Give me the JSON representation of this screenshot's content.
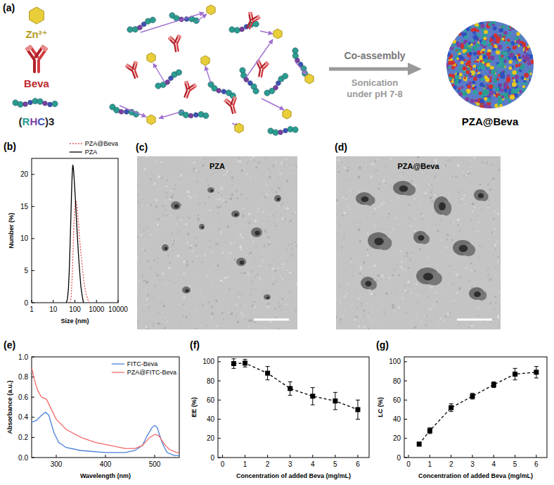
{
  "panels": {
    "a": {
      "label": "(a)",
      "components": {
        "zinc": "Zn²⁺",
        "antibody": "Beva",
        "peptide": "(RHC)3"
      },
      "process": {
        "step": "Co-assembly",
        "conditions": [
          "Sonication",
          "under pH 7-8"
        ]
      },
      "product": "PZA@Beva"
    },
    "c": {
      "label": "(c)",
      "title": "PZA"
    },
    "d": {
      "label": "(d)",
      "title": "PZA@Beva"
    }
  },
  "chart_data": [
    {
      "panel": "(b)",
      "type": "line",
      "x_label": "Size (nm)",
      "y_label": "Number (%)",
      "log": "x",
      "xlim": [
        1,
        10000
      ],
      "xticks": [
        1,
        10,
        100,
        1000,
        10000
      ],
      "ylim": [
        0,
        22.5
      ],
      "yticks": [
        0,
        5,
        10,
        15,
        20
      ],
      "legend": "top",
      "series": [
        {
          "name": "PZA@Beva",
          "color": "#e05050",
          "line_style": "dotted",
          "x": [
            60,
            68,
            75,
            82,
            90,
            100,
            110,
            120,
            130,
            150,
            170,
            200,
            230,
            270,
            320,
            400,
            450
          ],
          "values": [
            0,
            1,
            4,
            8,
            12,
            15,
            16,
            15.5,
            14.5,
            12,
            9.5,
            7,
            5,
            3,
            1.5,
            0.5,
            0
          ]
        },
        {
          "name": "PZA",
          "color": "#000000",
          "line_style": "solid",
          "x": [
            40,
            45,
            50,
            55,
            60,
            65,
            70,
            75,
            80,
            85,
            90,
            100,
            110,
            120,
            135,
            150,
            170,
            190,
            220,
            250
          ],
          "values": [
            0,
            0.5,
            2,
            5,
            9,
            13,
            17,
            20,
            21.5,
            21,
            20,
            17.5,
            15,
            12.5,
            9.5,
            7,
            4.5,
            2.5,
            1,
            0
          ]
        }
      ]
    },
    {
      "panel": "(e)",
      "type": "line",
      "x_label": "Wavelength (nm)",
      "y_label": "Absorbance (a.u.)",
      "xlim": [
        250,
        550
      ],
      "xticks": [
        300,
        400,
        500
      ],
      "ylim": [
        0,
        1.0
      ],
      "yticks": [
        {
          "value": 0,
          "label": "0.0"
        },
        {
          "value": 0.2,
          "label": "0.2"
        },
        {
          "value": 0.4,
          "label": "0.4"
        },
        {
          "value": 0.6,
          "label": "0.6"
        },
        {
          "value": 0.8,
          "label": "0.8"
        },
        {
          "value": 1.0,
          "label": "1.0"
        }
      ],
      "legend": "top-right",
      "series": [
        {
          "name": "FITC-Beva",
          "color": "#4a7fd8",
          "line_style": "solid",
          "x": [
            250,
            260,
            270,
            278,
            285,
            295,
            305,
            320,
            350,
            400,
            440,
            460,
            475,
            485,
            495,
            500,
            505,
            515,
            525,
            540,
            550
          ],
          "values": [
            0.35,
            0.37,
            0.42,
            0.45,
            0.42,
            0.25,
            0.15,
            0.1,
            0.07,
            0.05,
            0.05,
            0.07,
            0.12,
            0.22,
            0.3,
            0.32,
            0.3,
            0.15,
            0.05,
            0.02,
            0.02
          ]
        },
        {
          "name": "PZA@FITC-Beva",
          "color": "#f06a6a",
          "line_style": "solid",
          "x": [
            250,
            255,
            262,
            270,
            280,
            290,
            300,
            320,
            350,
            380,
            410,
            440,
            460,
            475,
            490,
            500,
            508,
            520,
            530,
            545,
            550
          ],
          "values": [
            0.9,
            0.78,
            0.67,
            0.6,
            0.58,
            0.48,
            0.38,
            0.28,
            0.2,
            0.15,
            0.12,
            0.09,
            0.09,
            0.12,
            0.2,
            0.23,
            0.22,
            0.13,
            0.08,
            0.05,
            0.05
          ]
        }
      ]
    },
    {
      "panel": "(f)",
      "type": "line",
      "x_label": "Concentration of added Beva (mg/mL)",
      "y_label": "EE (%)",
      "xlim": [
        -0.2,
        6.5
      ],
      "xticks": [
        0,
        1,
        2,
        3,
        4,
        5,
        6
      ],
      "ylim": [
        0,
        105
      ],
      "yticks": [
        0,
        20,
        40,
        60,
        80,
        100
      ],
      "color": "#000000",
      "marker": "square",
      "line_style": "dashed",
      "x": [
        0.5,
        1,
        2,
        3,
        4,
        5,
        6
      ],
      "values": [
        98,
        98.5,
        88,
        72,
        64,
        59,
        50
      ],
      "errors": [
        5,
        4,
        7,
        7,
        9,
        9,
        10
      ]
    },
    {
      "panel": "(g)",
      "type": "line",
      "x_label": "Concentration of added Beva (mg/mL)",
      "y_label": "LC (%)",
      "xlim": [
        -0.2,
        6.5
      ],
      "xticks": [
        0,
        1,
        2,
        3,
        4,
        5,
        6
      ],
      "ylim": [
        0,
        105
      ],
      "yticks": [
        0,
        20,
        40,
        60,
        80,
        100
      ],
      "color": "#000000",
      "marker": "square",
      "line_style": "dashed",
      "x": [
        0.5,
        1,
        2,
        3,
        4,
        5,
        6
      ],
      "values": [
        14,
        28,
        52,
        64,
        76,
        87,
        89
      ],
      "errors": [
        2,
        3,
        4,
        3,
        3,
        6,
        6
      ]
    }
  ]
}
